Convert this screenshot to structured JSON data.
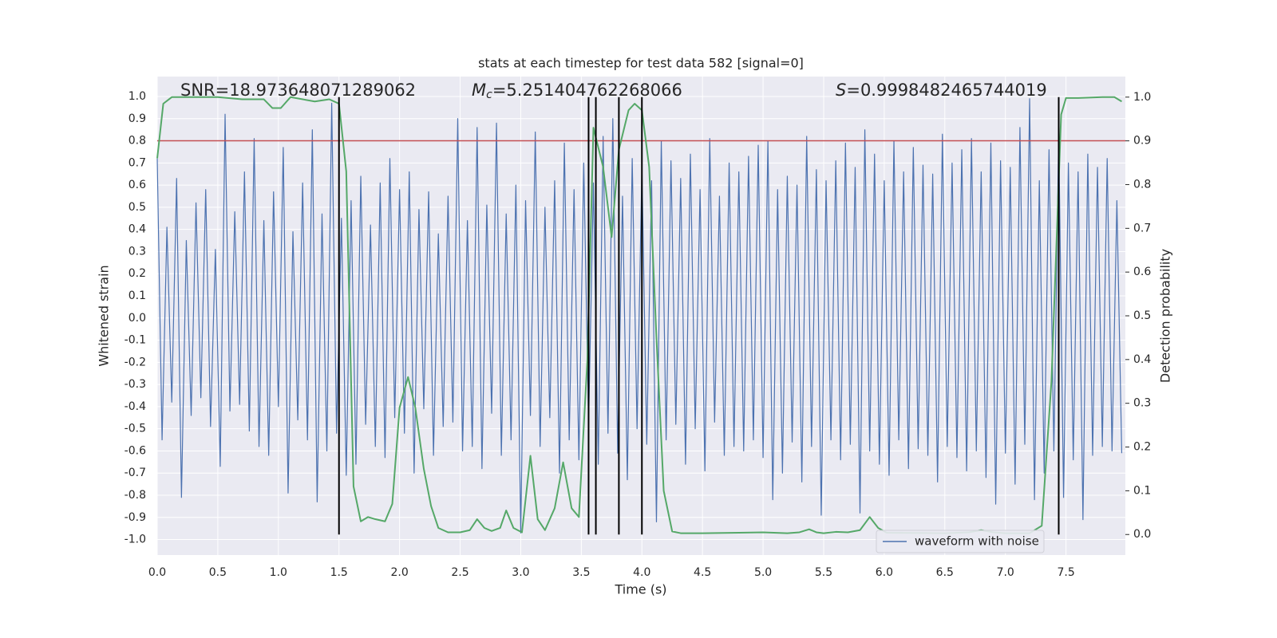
{
  "chart_data": {
    "type": "line",
    "title": "stats at each timestep for test data 582 [signal=0]",
    "xlabel": "Time (s)",
    "ylabel": "Whitened strain",
    "y2label": "Detection probability",
    "annotations": [
      {
        "text": "SNR=18.973648071289062"
      },
      {
        "symbol": "M",
        "subscript": "c",
        "text": "=5.251404762268066"
      },
      {
        "symbol": "S",
        "text": "=0.9998482465744019"
      }
    ],
    "xlim": [
      0,
      7.99
    ],
    "ylim": [
      -1.07,
      1.09
    ],
    "y2lim": [
      -0.047,
      1.047
    ],
    "xticks": [
      {
        "value": 0,
        "label": "0.0"
      },
      {
        "value": 0.5,
        "label": "0.5"
      },
      {
        "value": 1,
        "label": "1.0"
      },
      {
        "value": 1.5,
        "label": "1.5"
      },
      {
        "value": 2,
        "label": "2.0"
      },
      {
        "value": 2.5,
        "label": "2.5"
      },
      {
        "value": 3,
        "label": "3.0"
      },
      {
        "value": 3.5,
        "label": "3.5"
      },
      {
        "value": 4,
        "label": "4.0"
      },
      {
        "value": 4.5,
        "label": "4.5"
      },
      {
        "value": 5,
        "label": "5.0"
      },
      {
        "value": 5.5,
        "label": "5.5"
      },
      {
        "value": 6,
        "label": "6.0"
      },
      {
        "value": 6.5,
        "label": "6.5"
      },
      {
        "value": 7,
        "label": "7.0"
      },
      {
        "value": 7.5,
        "label": "7.5"
      }
    ],
    "yticks": [
      {
        "value": 1,
        "label": "1.0"
      },
      0.9,
      0.8,
      0.7,
      0.6,
      0.5,
      0.4,
      0.3,
      0.2,
      0.1,
      {
        "value": 0,
        "label": "0.0"
      },
      -0.1,
      -0.2,
      -0.3,
      -0.4,
      -0.5,
      -0.6,
      -0.7,
      -0.8,
      -0.9,
      {
        "value": -1,
        "label": "-1.0"
      }
    ],
    "y2ticks": [
      {
        "value": 1,
        "label": "1.0"
      },
      0.9,
      0.8,
      0.7,
      0.6,
      0.5,
      0.4,
      0.3,
      0.2,
      0.1,
      {
        "value": 0,
        "label": "0.0"
      }
    ],
    "grid": true,
    "legend": "lower right",
    "hline": {
      "y": 0.8,
      "color": "#c44e52"
    },
    "vlines": {
      "x": [
        1.5,
        3.56,
        3.62,
        3.81,
        4.0,
        7.44
      ],
      "ymin": 0,
      "ymax": 1,
      "axis": "y2",
      "color": "#000000"
    },
    "series": [
      {
        "name": "waveform with noise",
        "color": "#4c72b0",
        "x": [
          0,
          0.04,
          0.08,
          0.12,
          0.16,
          0.2,
          0.24,
          0.28,
          0.32,
          0.36,
          0.4,
          0.44,
          0.48,
          0.52,
          0.56,
          0.6,
          0.64,
          0.68,
          0.72,
          0.76,
          0.8,
          0.84,
          0.88,
          0.92,
          0.96,
          1,
          1.04,
          1.08,
          1.12,
          1.16,
          1.2,
          1.24,
          1.28,
          1.32,
          1.36,
          1.4,
          1.44,
          1.48,
          1.52,
          1.56,
          1.6,
          1.64,
          1.68,
          1.72,
          1.76,
          1.8,
          1.84,
          1.88,
          1.92,
          1.96,
          2,
          2.04,
          2.08,
          2.12,
          2.16,
          2.2,
          2.24,
          2.28,
          2.32,
          2.36,
          2.4,
          2.44,
          2.48,
          2.52,
          2.56,
          2.6,
          2.64,
          2.68,
          2.72,
          2.76,
          2.8,
          2.84,
          2.88,
          2.92,
          2.96,
          3,
          3.04,
          3.08,
          3.12,
          3.16,
          3.2,
          3.24,
          3.28,
          3.32,
          3.36,
          3.4,
          3.44,
          3.48,
          3.52,
          3.56,
          3.6,
          3.64,
          3.68,
          3.72,
          3.76,
          3.8,
          3.84,
          3.88,
          3.92,
          3.96,
          4,
          4.04,
          4.08,
          4.12,
          4.16,
          4.2,
          4.24,
          4.28,
          4.32,
          4.36,
          4.4,
          4.44,
          4.48,
          4.52,
          4.56,
          4.6,
          4.64,
          4.68,
          4.72,
          4.76,
          4.8,
          4.84,
          4.88,
          4.92,
          4.96,
          5,
          5.04,
          5.08,
          5.12,
          5.16,
          5.2,
          5.24,
          5.28,
          5.32,
          5.36,
          5.4,
          5.44,
          5.48,
          5.52,
          5.56,
          5.6,
          5.64,
          5.68,
          5.72,
          5.76,
          5.8,
          5.84,
          5.88,
          5.92,
          5.96,
          6,
          6.04,
          6.08,
          6.12,
          6.16,
          6.2,
          6.24,
          6.28,
          6.32,
          6.36,
          6.4,
          6.44,
          6.48,
          6.52,
          6.56,
          6.6,
          6.64,
          6.68,
          6.72,
          6.76,
          6.8,
          6.84,
          6.88,
          6.92,
          6.96,
          7,
          7.04,
          7.08,
          7.12,
          7.16,
          7.2,
          7.24,
          7.28,
          7.32,
          7.36,
          7.4,
          7.44,
          7.48,
          7.52,
          7.56,
          7.6,
          7.64,
          7.68,
          7.72,
          7.76,
          7.8,
          7.84,
          7.88,
          7.92,
          7.96
        ],
        "values": [
          0.72,
          -0.55,
          0.41,
          -0.38,
          0.63,
          -0.81,
          0.35,
          -0.44,
          0.52,
          -0.36,
          0.58,
          -0.49,
          0.31,
          -0.67,
          0.92,
          -0.42,
          0.48,
          -0.39,
          0.66,
          -0.51,
          0.81,
          -0.58,
          0.44,
          -0.62,
          0.57,
          -0.4,
          0.77,
          -0.79,
          0.39,
          -0.46,
          0.61,
          -0.55,
          0.85,
          -0.83,
          0.47,
          -0.6,
          0.97,
          -0.52,
          0.45,
          -0.71,
          0.53,
          -0.66,
          0.64,
          -0.48,
          0.42,
          -0.58,
          0.61,
          -0.63,
          0.72,
          -0.45,
          0.58,
          -0.52,
          0.66,
          -0.7,
          0.49,
          -0.41,
          0.57,
          -0.62,
          0.38,
          -0.49,
          0.55,
          -0.47,
          0.9,
          -0.6,
          0.44,
          -0.58,
          0.86,
          -0.68,
          0.51,
          -0.43,
          0.88,
          -0.62,
          0.47,
          -0.55,
          0.6,
          -0.97,
          0.53,
          -0.44,
          0.84,
          -0.58,
          0.5,
          -0.45,
          0.62,
          -0.7,
          0.79,
          -0.55,
          0.58,
          -0.64,
          0.7,
          -0.48,
          0.61,
          -0.66,
          0.82,
          -0.52,
          0.9,
          -0.61,
          0.55,
          -0.73,
          0.72,
          -0.5,
          0.68,
          -0.57,
          0.62,
          -0.92,
          0.8,
          -0.55,
          0.71,
          -0.48,
          0.63,
          -0.66,
          0.74,
          -0.5,
          0.58,
          -0.69,
          0.81,
          -0.47,
          0.55,
          -0.62,
          0.7,
          -0.58,
          0.66,
          -0.6,
          0.73,
          -0.55,
          0.78,
          -0.63,
          0.8,
          -0.82,
          0.58,
          -0.7,
          0.64,
          -0.56,
          0.6,
          -0.74,
          0.82,
          -0.58,
          0.67,
          -0.89,
          0.62,
          -0.55,
          0.71,
          -0.64,
          0.79,
          -0.57,
          0.68,
          -0.88,
          0.85,
          -0.6,
          0.74,
          -0.66,
          0.62,
          -0.71,
          0.8,
          -0.55,
          0.66,
          -0.68,
          0.77,
          -0.59,
          0.69,
          -0.62,
          0.65,
          -0.74,
          0.83,
          -0.58,
          0.7,
          -0.63,
          0.76,
          -0.69,
          0.81,
          -0.6,
          0.66,
          -0.72,
          0.79,
          -0.84,
          0.71,
          -0.61,
          0.68,
          -0.75,
          0.86,
          -0.57,
          0.99,
          -0.82,
          0.62,
          -0.7,
          0.76,
          -0.6,
          0.83,
          -0.81,
          0.7,
          -0.64,
          0.66,
          -0.91,
          0.74,
          -0.62,
          0.68,
          -0.58,
          0.72,
          -0.6,
          0.53,
          -0.61
        ]
      },
      {
        "color": "#55a868",
        "axis": "y2",
        "x": [
          0,
          0.05,
          0.12,
          0.3,
          0.5,
          0.7,
          0.88,
          0.95,
          1.02,
          1.1,
          1.3,
          1.42,
          1.5,
          1.56,
          1.62,
          1.68,
          1.74,
          1.8,
          1.88,
          1.94,
          2,
          2.07,
          2.13,
          2.2,
          2.26,
          2.32,
          2.4,
          2.5,
          2.58,
          2.64,
          2.7,
          2.76,
          2.83,
          2.88,
          2.94,
          3.01,
          3.08,
          3.14,
          3.2,
          3.28,
          3.35,
          3.42,
          3.48,
          3.55,
          3.6,
          3.68,
          3.75,
          3.81,
          3.89,
          3.94,
          4,
          4.06,
          4.12,
          4.18,
          4.25,
          4.32,
          4.5,
          4.8,
          5,
          5.2,
          5.3,
          5.38,
          5.44,
          5.5,
          5.6,
          5.7,
          5.8,
          5.88,
          5.95,
          6.02,
          6.5,
          6.7,
          6.8,
          6.9,
          7,
          7.2,
          7.3,
          7.38,
          7.46,
          7.5,
          7.6,
          7.8,
          7.9,
          7.96
        ],
        "values": [
          0.86,
          0.985,
          1,
          1,
          1,
          0.995,
          0.995,
          0.975,
          0.975,
          1,
          0.99,
          0.995,
          0.985,
          0.83,
          0.11,
          0.03,
          0.04,
          0.035,
          0.03,
          0.07,
          0.29,
          0.36,
          0.29,
          0.15,
          0.065,
          0.015,
          0.005,
          0.005,
          0.01,
          0.035,
          0.015,
          0.008,
          0.015,
          0.055,
          0.015,
          0.005,
          0.18,
          0.035,
          0.01,
          0.06,
          0.165,
          0.06,
          0.04,
          0.4,
          0.93,
          0.84,
          0.68,
          0.88,
          0.97,
          0.985,
          0.97,
          0.84,
          0.45,
          0.1,
          0.007,
          0.003,
          0.003,
          0.004,
          0.005,
          0.003,
          0.005,
          0.012,
          0.005,
          0.003,
          0.006,
          0.005,
          0.01,
          0.04,
          0.015,
          0.004,
          0.003,
          0.005,
          0.01,
          0.005,
          0.003,
          0.003,
          0.02,
          0.35,
          0.96,
          0.998,
          0.998,
          1,
          1,
          0.99
        ]
      }
    ]
  }
}
